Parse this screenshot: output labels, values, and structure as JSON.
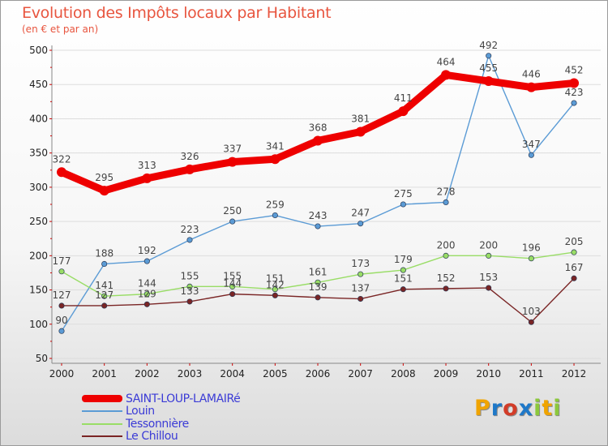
{
  "title": "Evolution des Impôts locaux par Habitant",
  "subtitle": "(en € et par an)",
  "brand": {
    "text": "Proxiti",
    "letters": [
      {
        "char": "P",
        "color": "#f0a400"
      },
      {
        "char": "r",
        "color": "#1e78c8"
      },
      {
        "char": "o",
        "color": "#d23c28"
      },
      {
        "char": "x",
        "color": "#1e78c8"
      },
      {
        "char": "i",
        "color": "#8cc83c"
      },
      {
        "char": "t",
        "color": "#f0a400"
      },
      {
        "char": "i",
        "color": "#8cc83c"
      }
    ]
  },
  "colors": {
    "title": "#e8553f",
    "axis": "#888888",
    "grid": "#dddddd",
    "legend_text": "#3b3bd6"
  },
  "chart_data": {
    "type": "line",
    "title": "Evolution des Impôts locaux par Habitant",
    "subtitle": "(en € et par an)",
    "xlabel": "",
    "ylabel": "",
    "x": [
      "2000",
      "2001",
      "2002",
      "2003",
      "2004",
      "2005",
      "2006",
      "2007",
      "2008",
      "2009",
      "2010",
      "2011",
      "2012"
    ],
    "ylim": [
      50,
      500
    ],
    "yticks": [
      50,
      100,
      150,
      200,
      250,
      300,
      350,
      400,
      450,
      500
    ],
    "grid": "horizontal",
    "legend_position": "bottom-left",
    "series": [
      {
        "name": "SAINT-LOUP-LAMAIRé",
        "color": "#ee0000",
        "line_style": "thick",
        "values": [
          322,
          295,
          313,
          326,
          337,
          341,
          368,
          381,
          411,
          464,
          455,
          446,
          452
        ]
      },
      {
        "name": "Louin",
        "color": "#5b9bd5",
        "line_style": "thin",
        "values": [
          90,
          188,
          192,
          223,
          250,
          259,
          243,
          247,
          275,
          278,
          492,
          347,
          423
        ]
      },
      {
        "name": "Tessonnière",
        "color": "#99dd66",
        "line_style": "thin",
        "values": [
          177,
          141,
          144,
          155,
          155,
          151,
          161,
          173,
          179,
          200,
          200,
          196,
          205
        ]
      },
      {
        "name": "Le Chillou",
        "color": "#7a2525",
        "line_style": "thin",
        "values": [
          127,
          127,
          129,
          133,
          144,
          142,
          139,
          137,
          151,
          152,
          153,
          103,
          167
        ]
      }
    ]
  }
}
